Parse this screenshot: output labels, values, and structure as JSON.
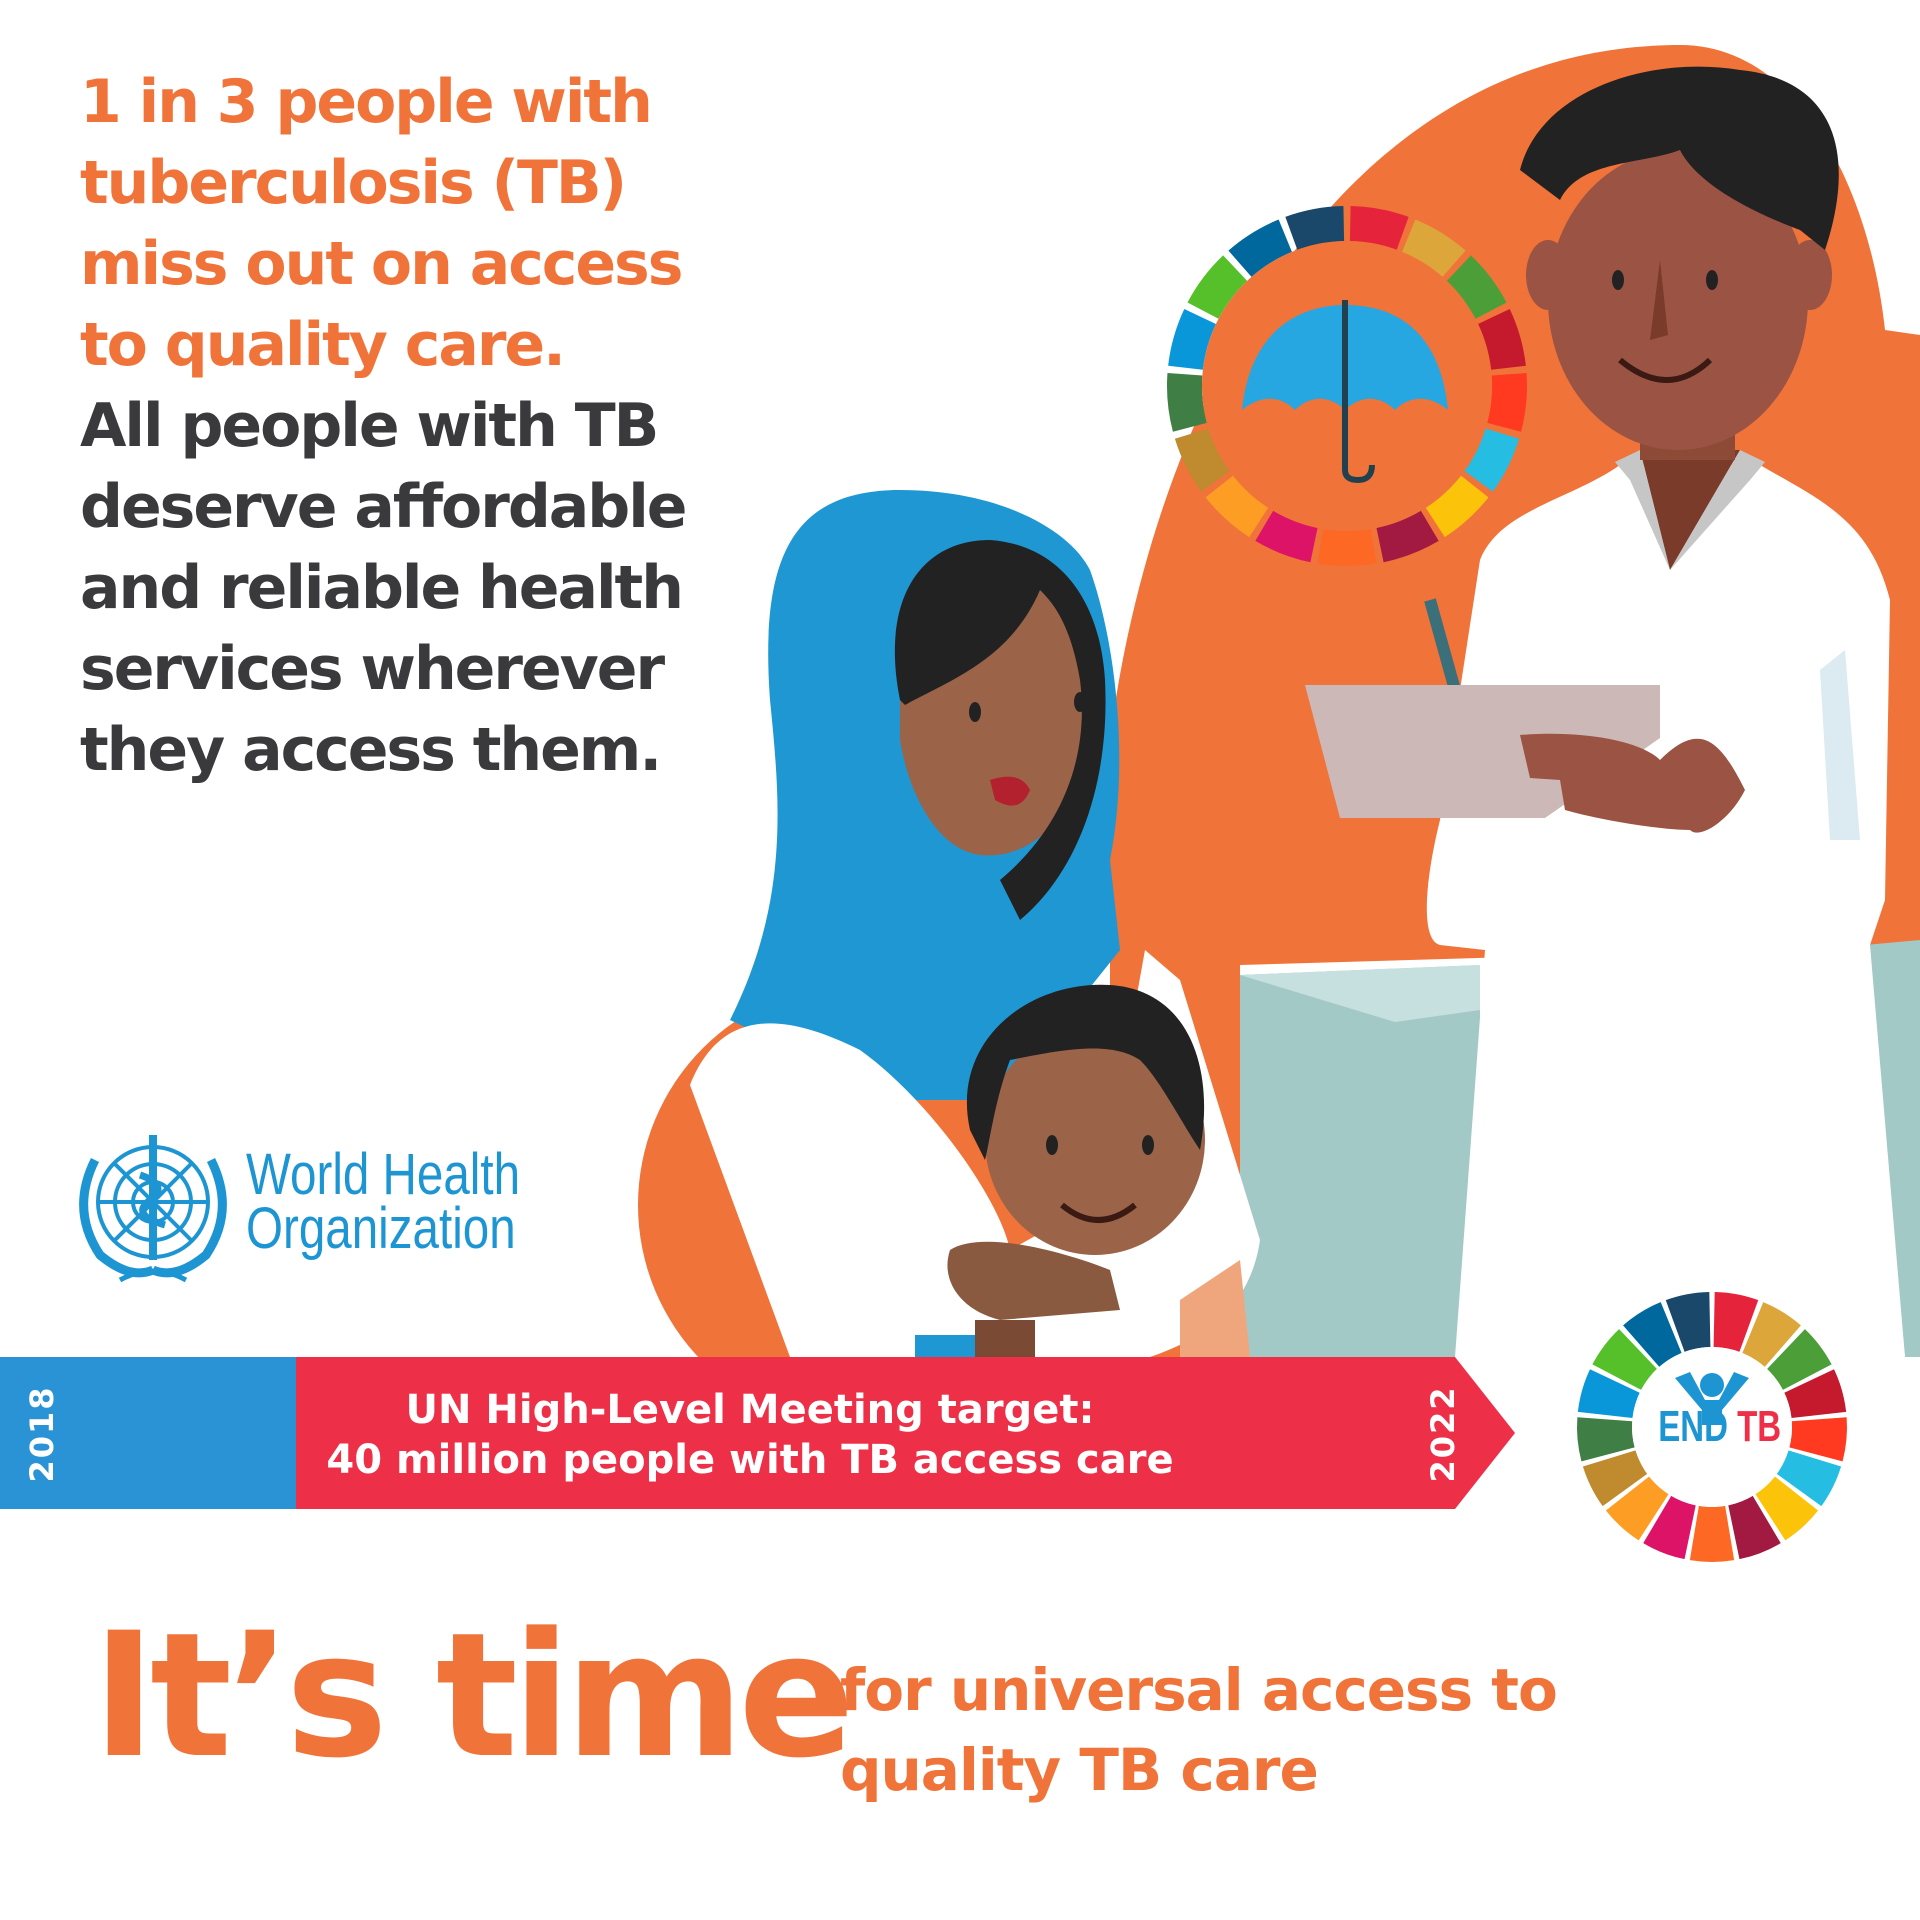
{
  "headline": {
    "orange_lines": [
      "1 in 3 people with",
      "tuberculosis (TB)",
      "miss out on access",
      "to quality care."
    ],
    "dark_lines": [
      "All people with TB",
      "deserve affordable",
      "and reliable health",
      "services wherever",
      "they access them."
    ]
  },
  "who_logo": {
    "line1": "World Health",
    "line2": "Organization"
  },
  "banner": {
    "start_year": "2018",
    "end_year": "2022",
    "line1": "UN High-Level Meeting target:",
    "line2": "40 million people with TB access care"
  },
  "endtb_logo": {
    "end": "END",
    "tb": "TB"
  },
  "footer": {
    "title": "It’s time",
    "tagline_line1": "for universal access to",
    "tagline_line2": "quality TB care"
  },
  "icons": [
    "who-emblem-icon",
    "umbrella-icon",
    "sdg-ring-icon",
    "endtb-person-icon"
  ],
  "colors": {
    "orange": "#f07339",
    "dark_text": "#3a3a3c",
    "who_blue": "#1e95d3",
    "banner_red": "#ee2f48",
    "banner_blue": "#2a93d5",
    "sdg": [
      "#e5243b",
      "#dda63a",
      "#4c9f38",
      "#c5192d",
      "#ff3a21",
      "#26bde2",
      "#fcc30b",
      "#a21942",
      "#fd6925",
      "#dd1367",
      "#fd9d24",
      "#bf8b2e",
      "#3f7e44",
      "#0a97d9",
      "#56c02b",
      "#00689d",
      "#19486a"
    ]
  }
}
